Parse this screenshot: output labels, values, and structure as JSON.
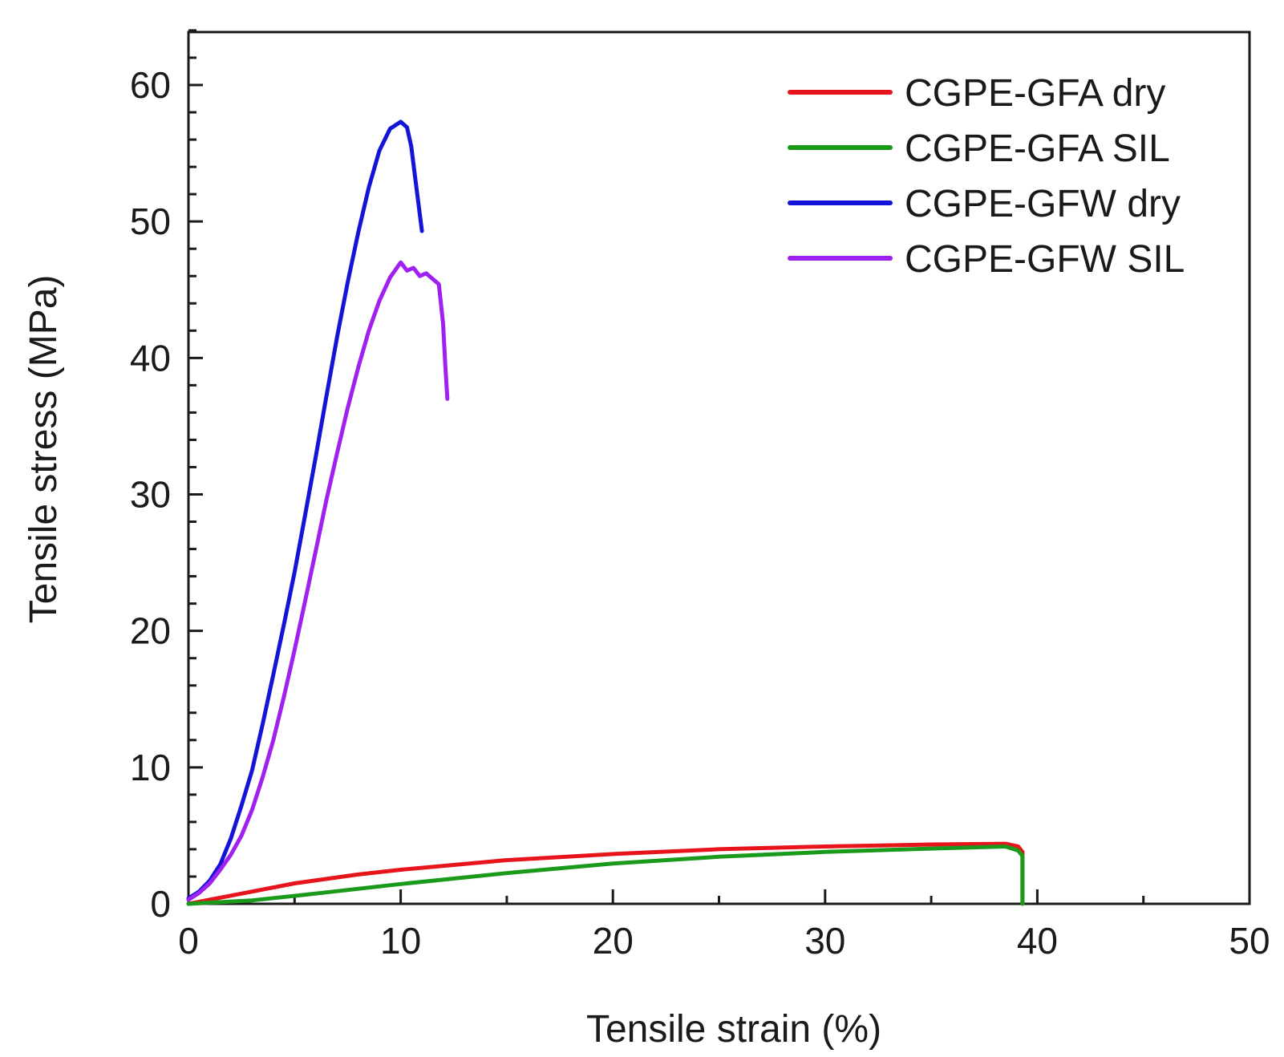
{
  "chart_data": {
    "type": "line",
    "title": "",
    "xlabel": "Tensile strain (%)",
    "ylabel": "Tensile stress (MPa)",
    "xlim": [
      0,
      50
    ],
    "ylim": [
      0,
      64
    ],
    "xticks": [
      0,
      10,
      20,
      30,
      40,
      50
    ],
    "xtick_labels": [
      "0",
      "10",
      "20",
      "30",
      "40",
      "50"
    ],
    "yticks": [
      0,
      10,
      20,
      30,
      40,
      50,
      60
    ],
    "ytick_labels": [
      "0",
      "10",
      "20",
      "30",
      "40",
      "50",
      "60"
    ],
    "grid": false,
    "legend_position": "top-right",
    "series": [
      {
        "name": "CGPE-GFA dry",
        "color": "#e8141c",
        "points": [
          [
            0,
            0
          ],
          [
            2,
            0.6
          ],
          [
            5,
            1.5
          ],
          [
            8,
            2.15
          ],
          [
            10,
            2.5
          ],
          [
            15,
            3.2
          ],
          [
            20,
            3.65
          ],
          [
            25,
            4.0
          ],
          [
            30,
            4.2
          ],
          [
            35,
            4.35
          ],
          [
            38.5,
            4.4
          ],
          [
            39.1,
            4.2
          ],
          [
            39.3,
            3.8
          ],
          [
            39.3,
            0
          ]
        ]
      },
      {
        "name": "CGPE-GFA SIL",
        "color": "#1a9a1a",
        "points": [
          [
            0,
            0
          ],
          [
            3,
            0.25
          ],
          [
            6,
            0.75
          ],
          [
            10,
            1.45
          ],
          [
            15,
            2.25
          ],
          [
            20,
            2.95
          ],
          [
            25,
            3.45
          ],
          [
            30,
            3.8
          ],
          [
            35,
            4.05
          ],
          [
            38.5,
            4.2
          ],
          [
            39.1,
            3.9
          ],
          [
            39.3,
            3.5
          ],
          [
            39.3,
            0
          ]
        ]
      },
      {
        "name": "CGPE-GFW dry",
        "color": "#1414d8",
        "points": [
          [
            0,
            0.4
          ],
          [
            0.5,
            0.9
          ],
          [
            1,
            1.7
          ],
          [
            1.5,
            2.9
          ],
          [
            2,
            4.8
          ],
          [
            2.5,
            7.2
          ],
          [
            3,
            9.8
          ],
          [
            3.5,
            13.2
          ],
          [
            4,
            16.8
          ],
          [
            4.5,
            20.5
          ],
          [
            5,
            24.3
          ],
          [
            5.5,
            28.5
          ],
          [
            6,
            32.8
          ],
          [
            6.5,
            37.2
          ],
          [
            7,
            41.5
          ],
          [
            7.5,
            45.5
          ],
          [
            8,
            49.2
          ],
          [
            8.5,
            52.5
          ],
          [
            9,
            55.2
          ],
          [
            9.5,
            56.8
          ],
          [
            10,
            57.3
          ],
          [
            10.3,
            56.9
          ],
          [
            10.5,
            55.5
          ],
          [
            10.7,
            53.0
          ],
          [
            11.0,
            49.3
          ]
        ]
      },
      {
        "name": "CGPE-GFW SIL",
        "color": "#a020f0",
        "points": [
          [
            0,
            0.3
          ],
          [
            0.5,
            0.8
          ],
          [
            1,
            1.5
          ],
          [
            1.5,
            2.5
          ],
          [
            2,
            3.6
          ],
          [
            2.5,
            5.0
          ],
          [
            3,
            6.9
          ],
          [
            3.5,
            9.3
          ],
          [
            4,
            12.0
          ],
          [
            4.5,
            15.2
          ],
          [
            5,
            18.6
          ],
          [
            5.5,
            22.2
          ],
          [
            6,
            25.9
          ],
          [
            6.5,
            29.6
          ],
          [
            7,
            33.0
          ],
          [
            7.5,
            36.3
          ],
          [
            8,
            39.3
          ],
          [
            8.5,
            42.0
          ],
          [
            9,
            44.2
          ],
          [
            9.5,
            45.9
          ],
          [
            10,
            47.0
          ],
          [
            10.3,
            46.4
          ],
          [
            10.6,
            46.6
          ],
          [
            10.9,
            46.0
          ],
          [
            11.2,
            46.2
          ],
          [
            11.5,
            45.8
          ],
          [
            11.8,
            45.4
          ],
          [
            12.0,
            42.5
          ],
          [
            12.1,
            39.5
          ],
          [
            12.2,
            37.0
          ]
        ]
      }
    ]
  }
}
